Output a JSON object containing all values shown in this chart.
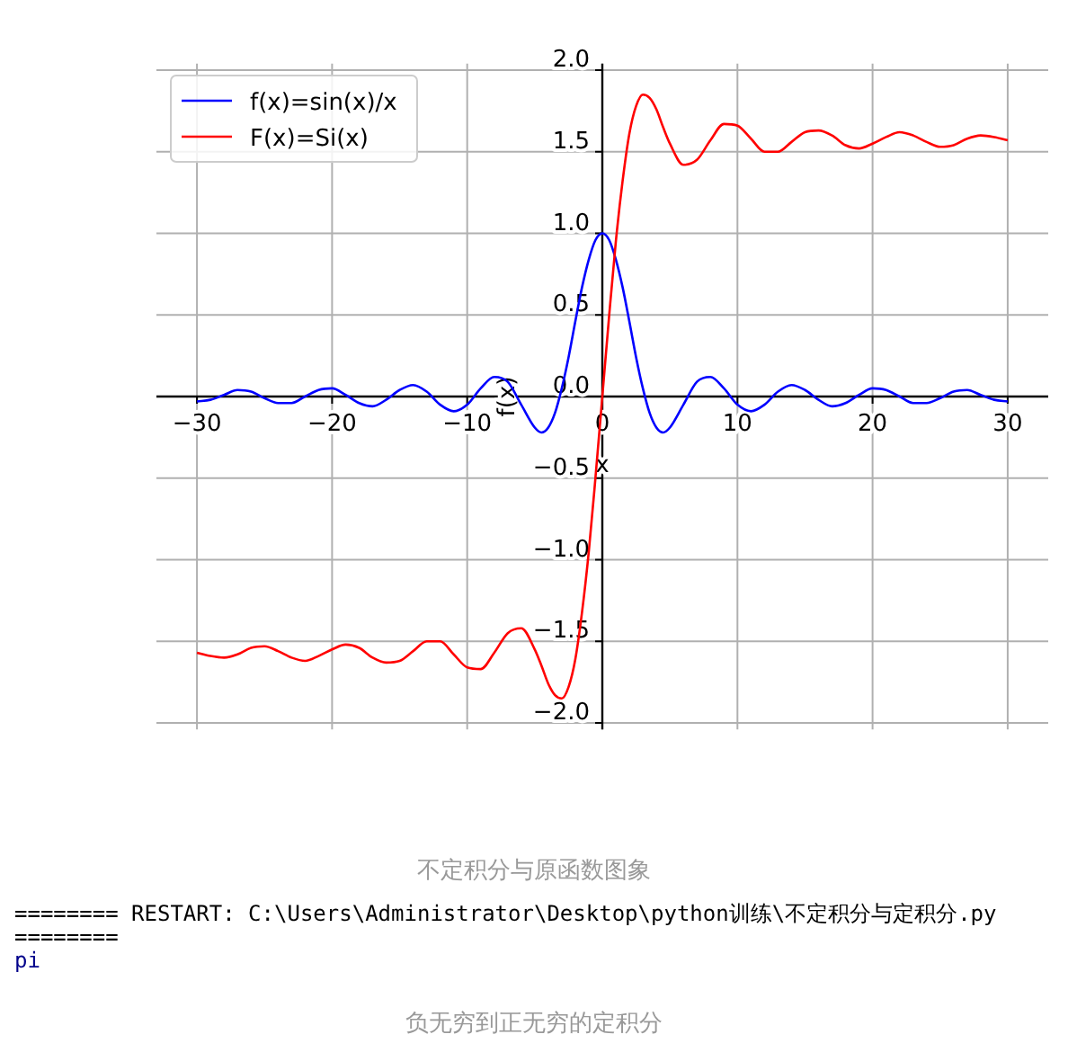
{
  "chart_data": {
    "type": "line",
    "xlabel": "x",
    "ylabel": "f(x)",
    "xlim": [
      -33,
      33
    ],
    "ylim": [
      -2.04,
      2.04
    ],
    "xticks": [
      {
        "value": -30,
        "label": "−30"
      },
      {
        "value": -20,
        "label": "−20"
      },
      {
        "value": -10,
        "label": "−10"
      },
      0,
      10,
      20,
      30
    ],
    "yticks": [
      {
        "value": -2,
        "label": "−2.0"
      },
      {
        "value": -1.5,
        "label": "−1.5"
      },
      {
        "value": -1,
        "label": "−1.0"
      },
      {
        "value": -0.5,
        "label": "−0.5"
      },
      {
        "value": 0,
        "label": "0.0"
      },
      {
        "value": 0.5,
        "label": "0.5"
      },
      {
        "value": 1,
        "label": "1.0"
      },
      {
        "value": 1.5,
        "label": "1.5"
      },
      {
        "value": 2,
        "label": "2.0"
      }
    ],
    "grid": true,
    "legend": "top left",
    "marker": "none",
    "line_style": "solid",
    "x": [
      -30,
      -29,
      -28,
      -27,
      -26,
      -25,
      -24,
      -23,
      -22,
      -21,
      -20,
      -19,
      -18,
      -17,
      -16,
      -15,
      -14,
      -13,
      -12,
      -11,
      -10,
      -9,
      -8,
      -7,
      -6,
      -5,
      -4.5,
      -4,
      -3.5,
      -3,
      -2.5,
      -2,
      -1.5,
      -1,
      -0.5,
      0,
      0.5,
      1,
      1.5,
      2,
      2.5,
      3,
      3.5,
      4,
      4.5,
      5,
      6,
      7,
      8,
      9,
      10,
      11,
      12,
      13,
      14,
      15,
      16,
      17,
      18,
      19,
      20,
      21,
      22,
      23,
      24,
      25,
      26,
      27,
      28,
      29,
      30
    ],
    "series": [
      {
        "name": "f(x)=sin(x)/x",
        "color": "#0000ff",
        "values": [
          -0.03,
          -0.02,
          0.01,
          0.04,
          0.03,
          -0.01,
          -0.04,
          -0.04,
          0,
          0.04,
          0.05,
          0.01,
          -0.04,
          -0.06,
          -0.02,
          0.04,
          0.07,
          0.03,
          -0.05,
          -0.09,
          -0.05,
          0.05,
          0.12,
          0.09,
          -0.05,
          -0.19,
          -0.22,
          -0.19,
          -0.1,
          0.05,
          0.24,
          0.46,
          0.67,
          0.84,
          0.96,
          1,
          0.96,
          0.84,
          0.67,
          0.46,
          0.24,
          0.05,
          -0.1,
          -0.19,
          -0.22,
          -0.19,
          -0.05,
          0.09,
          0.12,
          0.05,
          -0.05,
          -0.09,
          -0.05,
          0.03,
          0.07,
          0.04,
          -0.02,
          -0.06,
          -0.04,
          0.01,
          0.05,
          0.04,
          0,
          -0.04,
          -0.04,
          -0.01,
          0.03,
          0.04,
          0.01,
          -0.02,
          -0.03
        ]
      },
      {
        "name": "F(x)=Si(x)",
        "color": "#ff0000",
        "values": [
          -1.57,
          -1.59,
          -1.6,
          -1.58,
          -1.54,
          -1.53,
          -1.56,
          -1.6,
          -1.62,
          -1.59,
          -1.55,
          -1.52,
          -1.54,
          -1.6,
          -1.63,
          -1.62,
          -1.56,
          -1.5,
          -1.5,
          -1.58,
          -1.66,
          -1.67,
          -1.57,
          -1.45,
          -1.42,
          -1.55,
          -1.65,
          -1.76,
          -1.83,
          -1.85,
          -1.78,
          -1.61,
          -1.32,
          -0.95,
          -0.49,
          0,
          0.49,
          0.95,
          1.32,
          1.61,
          1.78,
          1.85,
          1.83,
          1.76,
          1.65,
          1.55,
          1.42,
          1.45,
          1.57,
          1.67,
          1.66,
          1.58,
          1.5,
          1.5,
          1.56,
          1.62,
          1.63,
          1.6,
          1.54,
          1.52,
          1.55,
          1.59,
          1.62,
          1.6,
          1.56,
          1.53,
          1.54,
          1.58,
          1.6,
          1.59,
          1.57
        ]
      }
    ],
    "annotations": [
      "不定积分与原函数图象",
      "======== RESTART: C:\\Users\\Administrator\\Desktop\\python训练\\不定积分与定积分.py ========",
      "pi",
      "负无穷到正无穷的定积分"
    ]
  }
}
